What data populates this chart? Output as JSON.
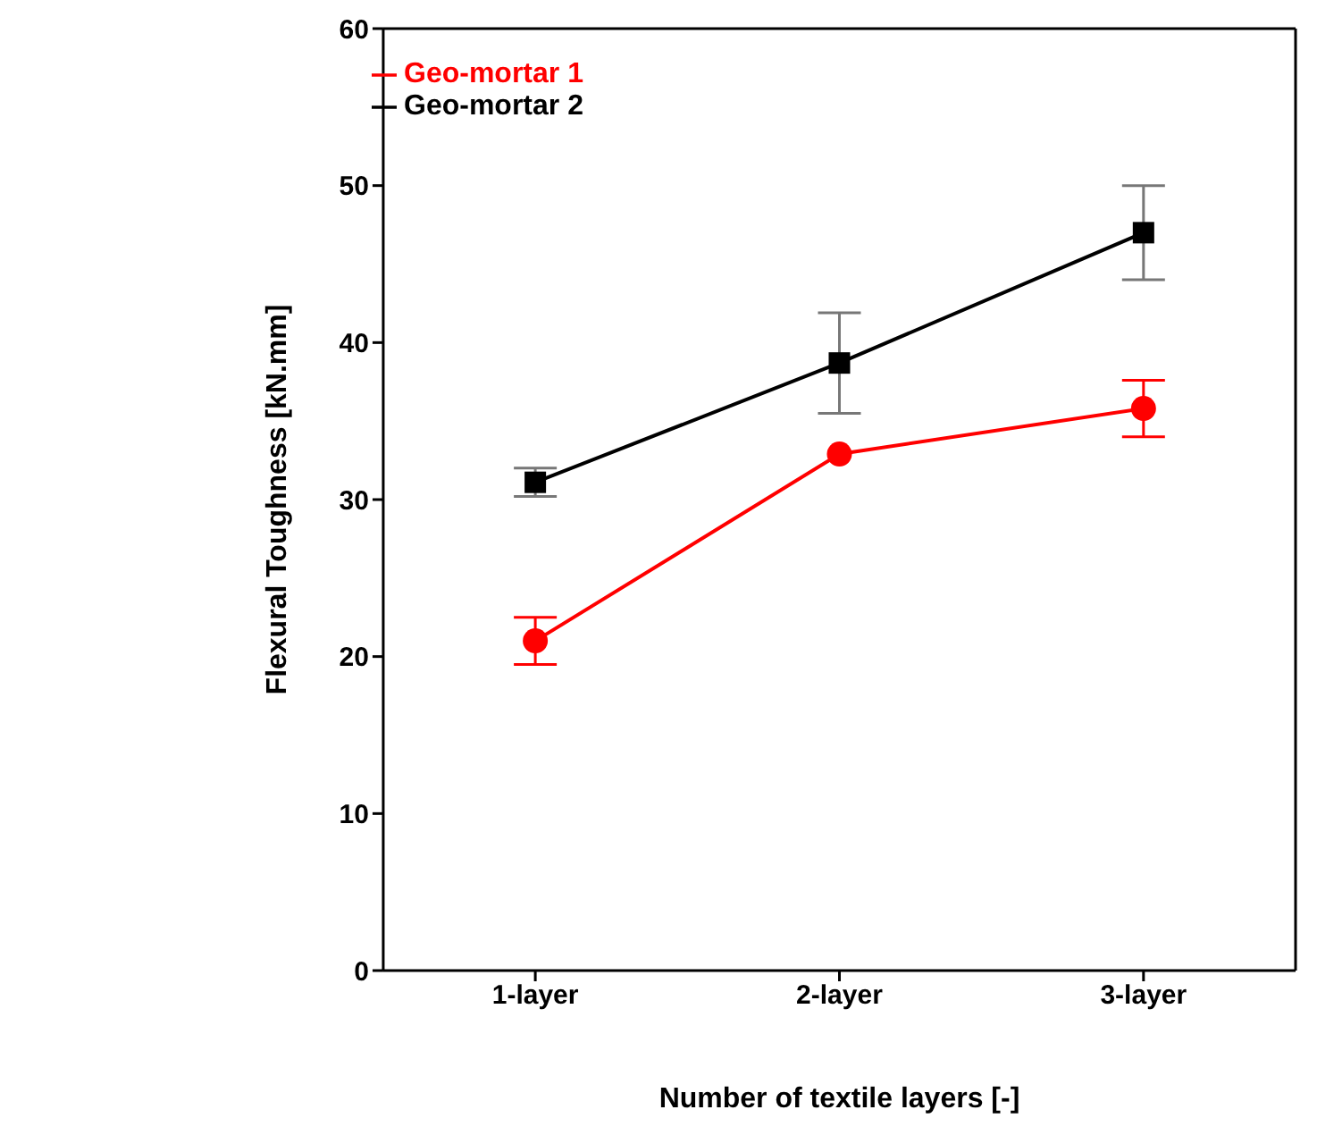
{
  "chart_data": {
    "type": "line",
    "xlabel": "Number of textile layers [-]",
    "ylabel": "Flexural Toughness [kN.mm]",
    "categories": [
      "1-layer",
      "2-layer",
      "3-layer"
    ],
    "series": [
      {
        "name": "Geo-mortar 2",
        "color": "#000000",
        "marker": "square",
        "values": [
          31.1,
          38.7,
          47.0
        ],
        "errors": [
          0.9,
          3.2,
          3.0
        ]
      },
      {
        "name": "Geo-mortar 1",
        "color": "#ff0000",
        "marker": "circle",
        "values": [
          21.0,
          32.9,
          35.8
        ],
        "errors": [
          1.5,
          null,
          1.8
        ]
      }
    ],
    "ylim": [
      0,
      60
    ],
    "yticks": [
      0,
      10,
      20,
      30,
      40,
      50,
      60
    ],
    "grid": false,
    "legend": "top left"
  }
}
